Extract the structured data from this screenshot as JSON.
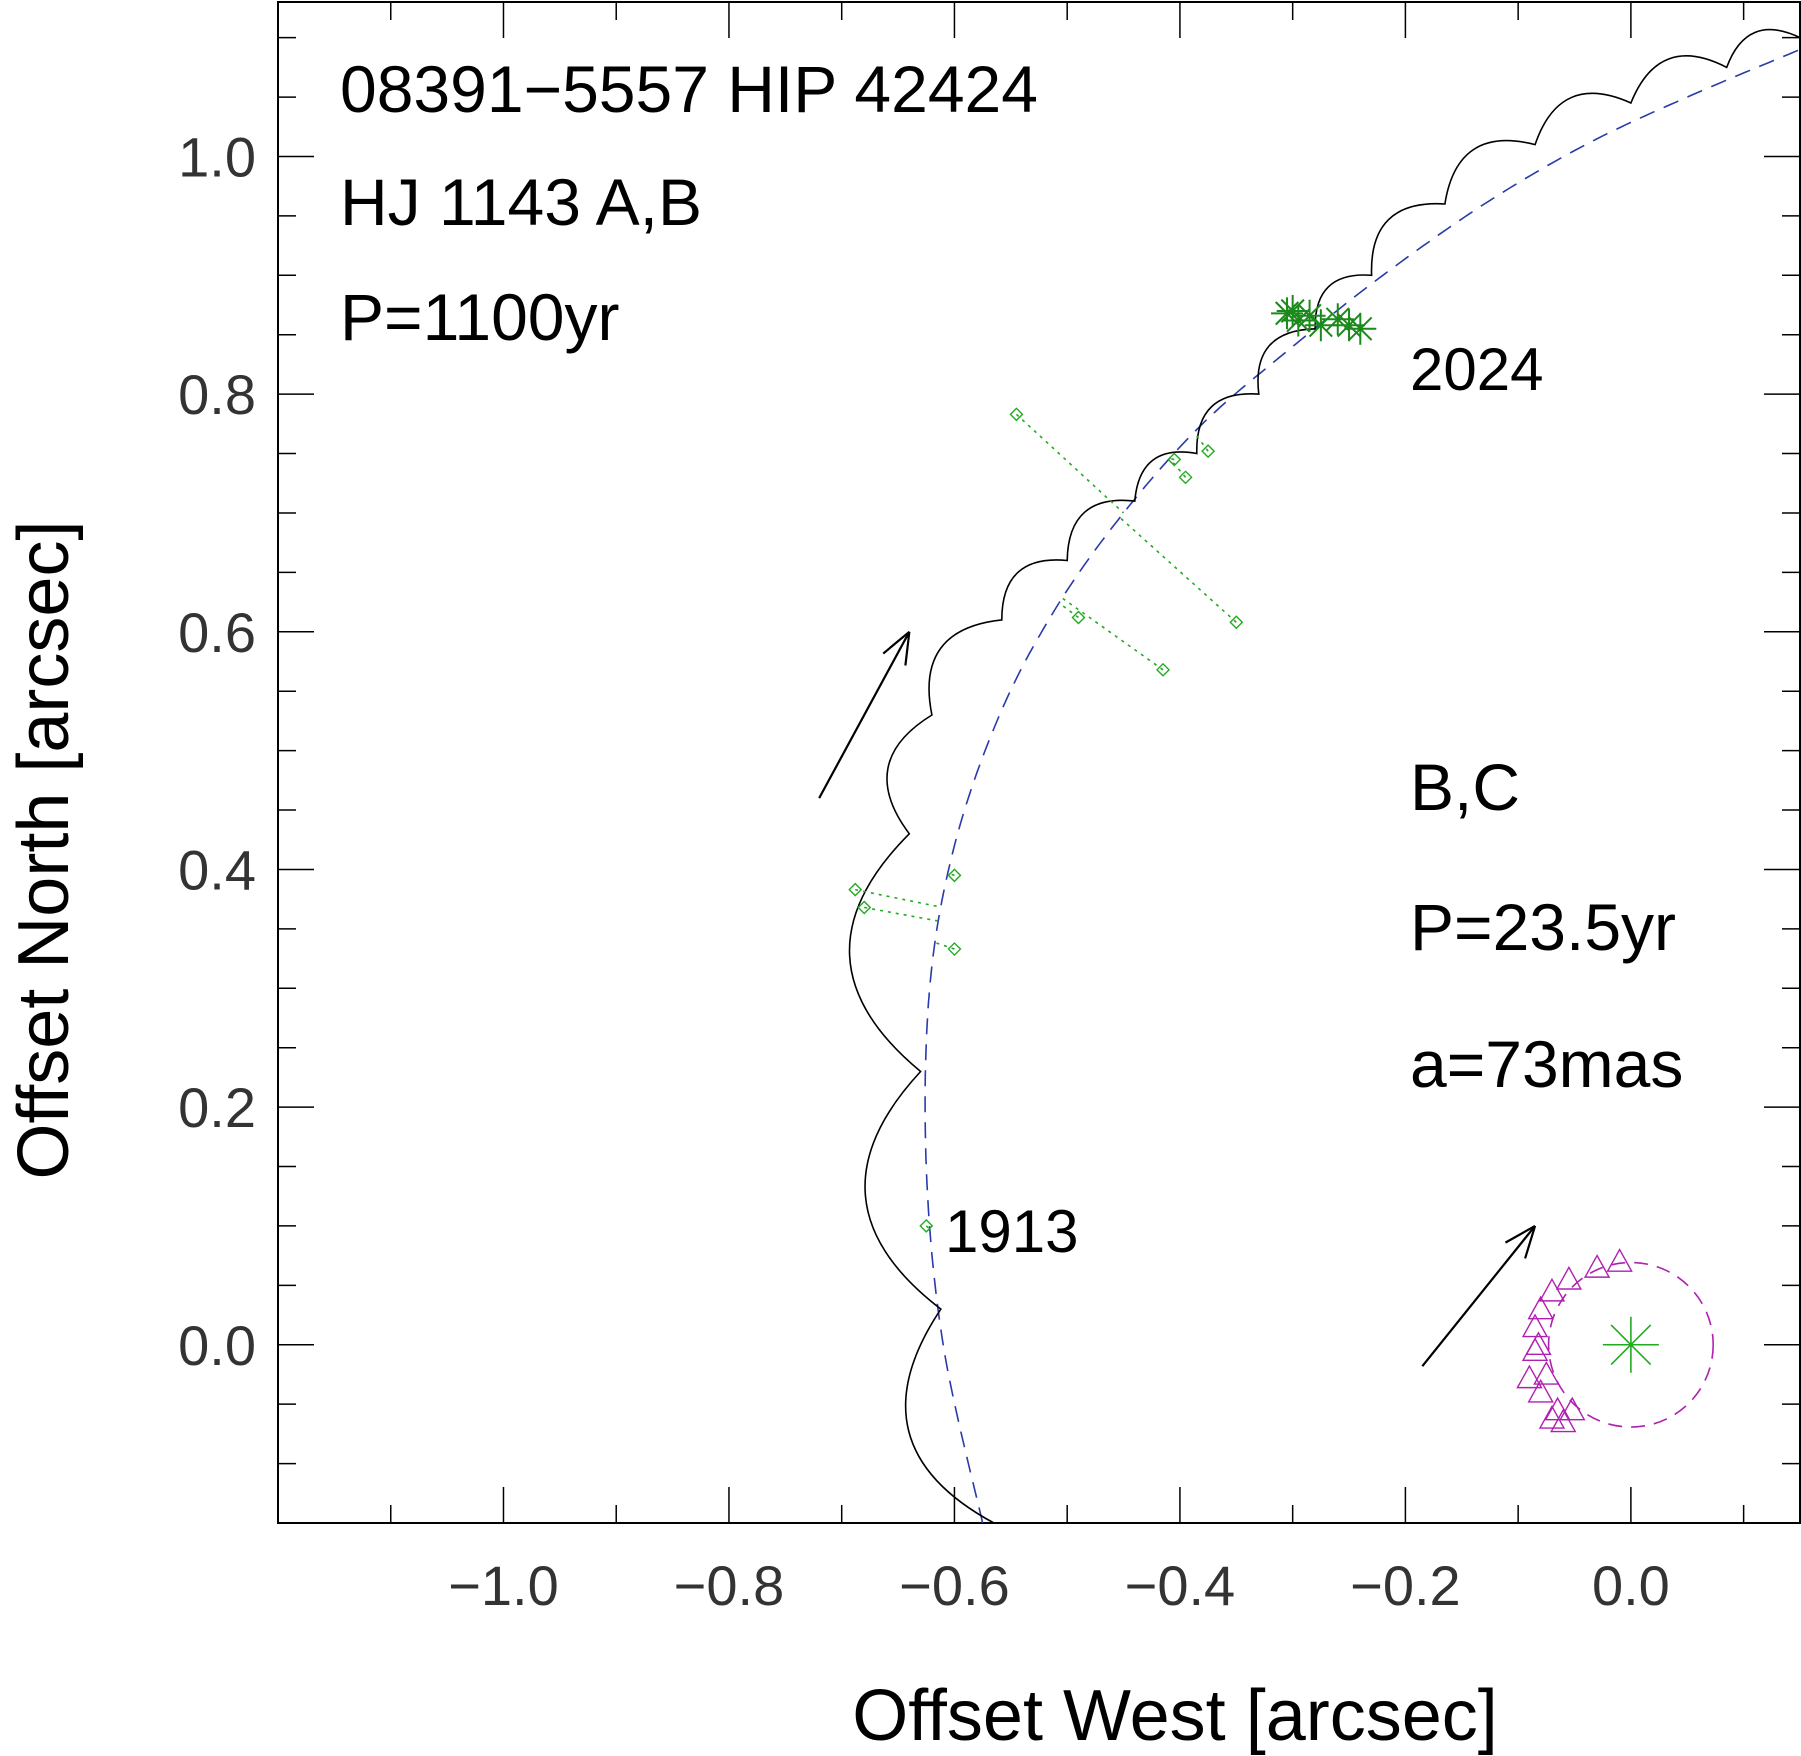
{
  "chart_data": {
    "type": "scatter",
    "title": "",
    "xlabel": "Offset West [arcsec]",
    "ylabel": "Offset North [arcsec]",
    "xlim": [
      -1.2,
      0.15
    ],
    "ylim": [
      -0.15,
      1.13
    ],
    "x_reversed": false,
    "grid": false,
    "xticks": [
      "−1.0",
      "−0.8",
      "−0.6",
      "−0.4",
      "−0.2",
      "0.0"
    ],
    "yticks": [
      "0.0",
      "0.2",
      "0.4",
      "0.6",
      "0.8",
      "1.0"
    ],
    "annotations": {
      "system": "08391−5557   HIP 42424",
      "pair_ab": "HJ 1143 A,B",
      "period_ab": "P=1100yr",
      "epoch_end": "2024",
      "epoch_start": "1913",
      "pair_bc": "B,C",
      "period_bc": "P=23.5yr",
      "semi_major_bc": "a=73mas"
    },
    "colors": {
      "orbit_ab": "#000000",
      "motion_ab": "#2a3aa8",
      "measures": "#22aa22",
      "residuals": "#22aa22",
      "speckle": "#1a8a1a",
      "bc_points": "#b020b0",
      "bc_orbit": "#b020b0",
      "arrows": "#000000"
    },
    "series": [
      {
        "kind": "wobble-orbit",
        "points": [
          [
            -0.565,
            -0.15
          ],
          [
            -0.612,
            0.03
          ],
          [
            -0.63,
            0.23
          ],
          [
            -0.64,
            0.43
          ],
          [
            -0.62,
            0.53
          ],
          [
            -0.558,
            0.61
          ],
          [
            -0.5,
            0.66
          ],
          [
            -0.44,
            0.71
          ],
          [
            -0.385,
            0.75
          ],
          [
            -0.33,
            0.8
          ],
          [
            -0.28,
            0.855
          ],
          [
            -0.23,
            0.9
          ],
          [
            -0.165,
            0.96
          ],
          [
            -0.085,
            1.01
          ],
          [
            0.0,
            1.045
          ],
          [
            0.085,
            1.075
          ],
          [
            0.15,
            1.1
          ]
        ]
      },
      {
        "kind": "mean-motion",
        "points": [
          [
            -0.575,
            -0.15
          ],
          [
            -0.61,
            0.0
          ],
          [
            -0.625,
            0.15
          ],
          [
            -0.622,
            0.3
          ],
          [
            -0.6,
            0.42
          ],
          [
            -0.56,
            0.53
          ],
          [
            -0.51,
            0.62
          ],
          [
            -0.45,
            0.7
          ],
          [
            -0.38,
            0.775
          ],
          [
            -0.3,
            0.84
          ],
          [
            -0.22,
            0.9
          ],
          [
            -0.13,
            0.96
          ],
          [
            -0.04,
            1.01
          ],
          [
            0.05,
            1.05
          ],
          [
            0.15,
            1.09
          ]
        ]
      },
      {
        "kind": "measures",
        "points": [
          [
            -0.625,
            0.1
          ],
          [
            -0.6,
            0.333
          ],
          [
            -0.68,
            0.368
          ],
          [
            -0.688,
            0.383
          ],
          [
            -0.6,
            0.395
          ],
          [
            -0.49,
            0.612
          ],
          [
            -0.415,
            0.568
          ],
          [
            -0.35,
            0.608
          ],
          [
            -0.405,
            0.745
          ],
          [
            -0.395,
            0.73
          ],
          [
            -0.375,
            0.752
          ],
          [
            -0.545,
            0.783
          ]
        ]
      },
      {
        "kind": "speckle-measures",
        "points": [
          [
            -0.305,
            0.868
          ],
          [
            -0.295,
            0.862
          ],
          [
            -0.285,
            0.866
          ],
          [
            -0.275,
            0.858
          ],
          [
            -0.26,
            0.863
          ],
          [
            -0.25,
            0.858
          ],
          [
            -0.24,
            0.855
          ],
          [
            -0.3,
            0.87
          ]
        ]
      },
      {
        "kind": "bc-measures",
        "points": [
          [
            -0.065,
            -0.055
          ],
          [
            -0.08,
            -0.04
          ],
          [
            -0.075,
            -0.025
          ],
          [
            -0.085,
            -0.005
          ],
          [
            -0.085,
            0.015
          ],
          [
            -0.08,
            0.03
          ],
          [
            -0.07,
            0.045
          ],
          [
            -0.055,
            0.055
          ],
          [
            -0.03,
            0.065
          ],
          [
            -0.01,
            0.07
          ],
          [
            -0.07,
            -0.062
          ],
          [
            -0.06,
            -0.065
          ],
          [
            -0.052,
            -0.055
          ],
          [
            -0.082,
            0.0
          ],
          [
            -0.09,
            -0.028
          ]
        ]
      },
      {
        "kind": "bc-orbit",
        "center": [
          0.0,
          0.0
        ],
        "radius": 0.073
      }
    ]
  }
}
